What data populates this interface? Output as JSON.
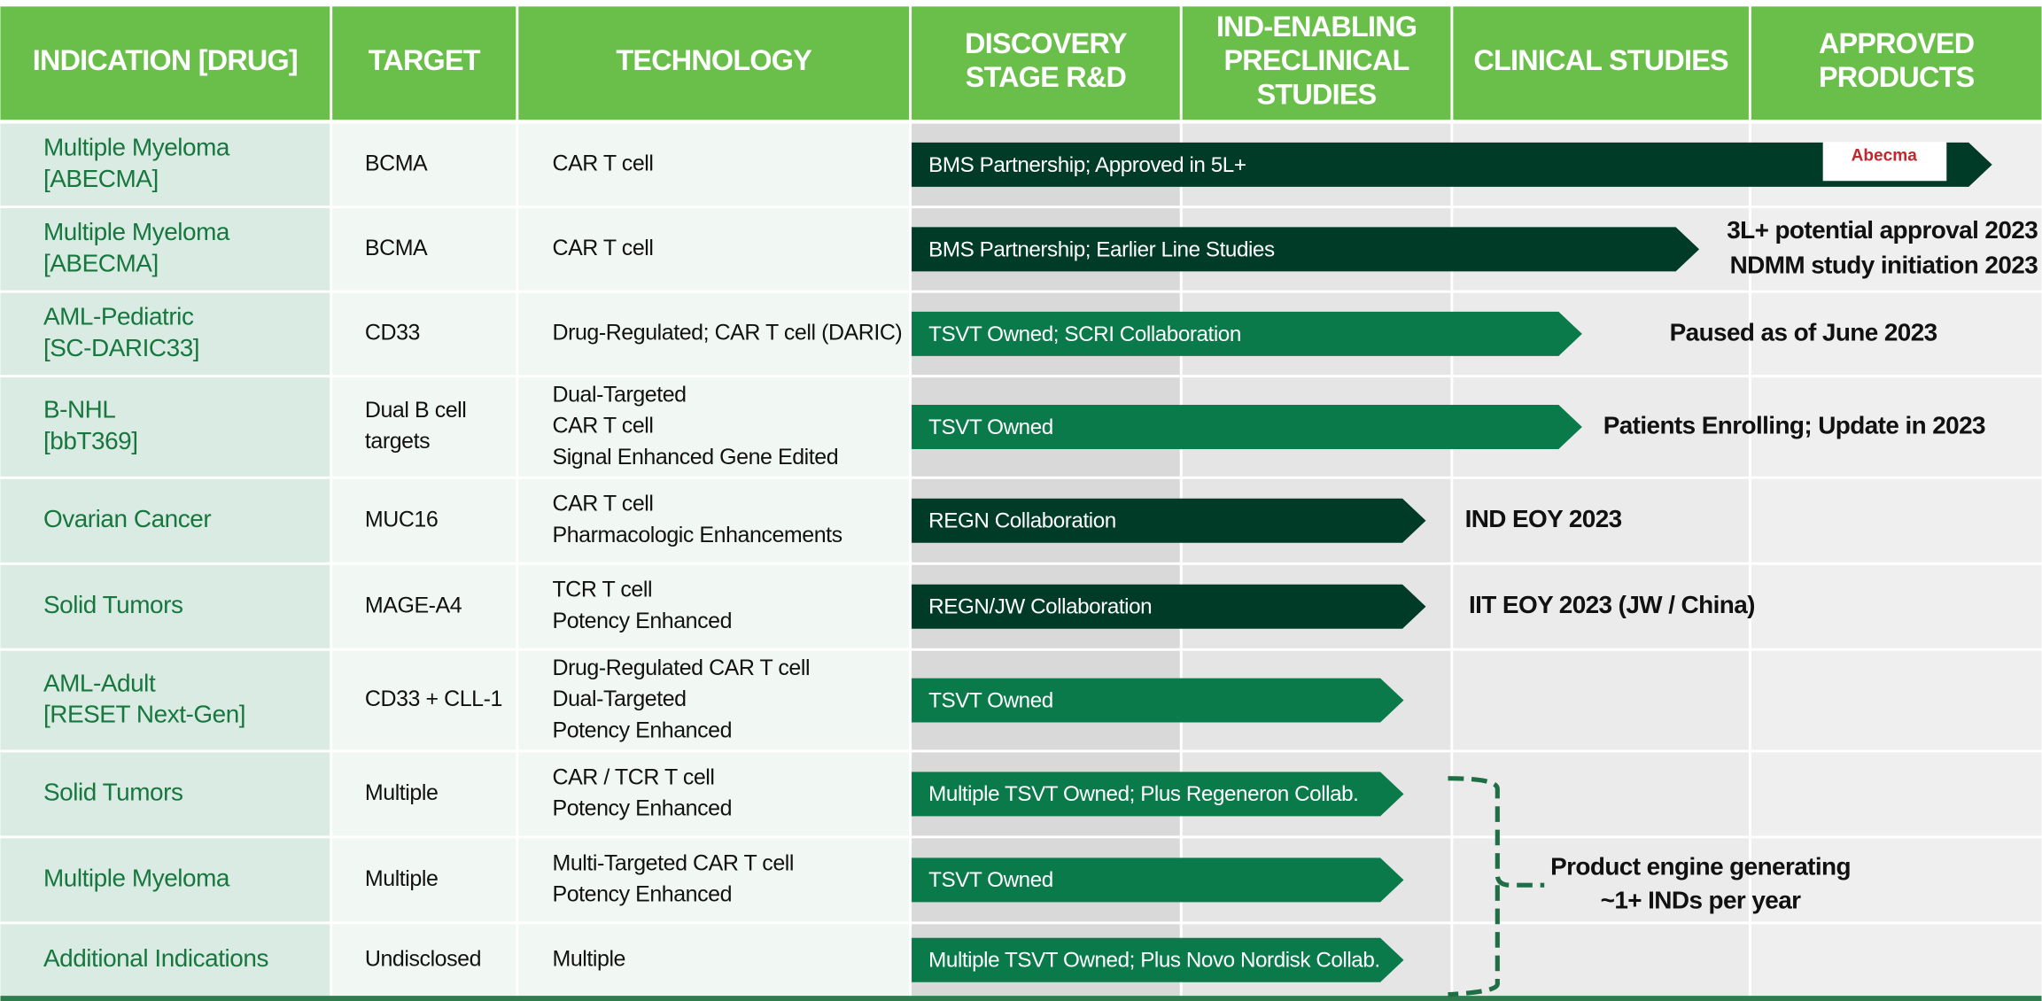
{
  "headers": [
    [
      "INDICATION [DRUG]"
    ],
    [
      "TARGET"
    ],
    [
      "TECHNOLOGY"
    ],
    [
      "DISCOVERY",
      "STAGE R&D"
    ],
    [
      "IND-ENABLING",
      "PRECLINICAL",
      "STUDIES"
    ],
    [
      "CLINICAL STUDIES"
    ],
    [
      "APPROVED",
      "PRODUCTS"
    ]
  ],
  "rows": [
    {
      "indication": [
        "Multiple Myeloma",
        "[ABECMA]"
      ],
      "target": [
        "BCMA"
      ],
      "technology": [
        "CAR T cell"
      ],
      "program": "BMS Partnership; Approved in 5L+",
      "logo": "Abecma"
    },
    {
      "indication": [
        "Multiple Myeloma",
        "[ABECMA]"
      ],
      "target": [
        "BCMA"
      ],
      "technology": [
        "CAR T cell"
      ],
      "program": "BMS Partnership; Earlier Line Studies",
      "status": [
        "3L+ potential approval 2023",
        "NDMM study initiation 2023"
      ]
    },
    {
      "indication": [
        "AML-Pediatric",
        "[SC-DARIC33]"
      ],
      "target": [
        "CD33"
      ],
      "technology": [
        "Drug-Regulated; CAR T cell (DARIC)"
      ],
      "program": "TSVT Owned; SCRI Collaboration",
      "status": [
        "Paused as of June 2023"
      ]
    },
    {
      "indication": [
        "B-NHL",
        "[bbT369]"
      ],
      "target": [
        "Dual B cell",
        "targets"
      ],
      "technology": [
        "Dual-Targeted",
        "CAR T cell",
        "Signal Enhanced Gene Edited"
      ],
      "program": "TSVT Owned",
      "status": [
        "Patients Enrolling; Update in 2023"
      ]
    },
    {
      "indication": [
        "Ovarian Cancer"
      ],
      "target": [
        "MUC16"
      ],
      "technology": [
        "CAR T cell",
        "Pharmacologic Enhancements"
      ],
      "program": "REGN Collaboration",
      "status": [
        "IND EOY 2023"
      ]
    },
    {
      "indication": [
        "Solid Tumors"
      ],
      "target": [
        "MAGE-A4"
      ],
      "technology": [
        "TCR T cell",
        "Potency Enhanced"
      ],
      "program": "REGN/JW Collaboration",
      "status": [
        "IIT EOY 2023 (JW / China)"
      ]
    },
    {
      "indication": [
        "AML-Adult",
        "[RESET Next-Gen]"
      ],
      "target": [
        "CD33 + CLL-1"
      ],
      "technology": [
        "Drug-Regulated CAR T cell",
        "Dual-Targeted",
        "Potency Enhanced"
      ],
      "program": "TSVT Owned"
    },
    {
      "indication": [
        "Solid Tumors"
      ],
      "target": [
        "Multiple"
      ],
      "technology": [
        "CAR / TCR T cell",
        "Potency Enhanced"
      ],
      "program": "Multiple TSVT Owned; Plus Regeneron Collab."
    },
    {
      "indication": [
        "Multiple Myeloma"
      ],
      "target": [
        "Multiple"
      ],
      "technology": [
        "Multi-Targeted CAR T cell",
        "Potency Enhanced"
      ],
      "program": "TSVT Owned"
    },
    {
      "indication": [
        "Additional Indications"
      ],
      "target": [
        "Undisclosed"
      ],
      "technology": [
        "Multiple"
      ],
      "program": "Multiple TSVT Owned; Plus Novo Nordisk Collab."
    }
  ],
  "note": [
    "Product engine generating",
    "~1+ INDs per year"
  ]
}
